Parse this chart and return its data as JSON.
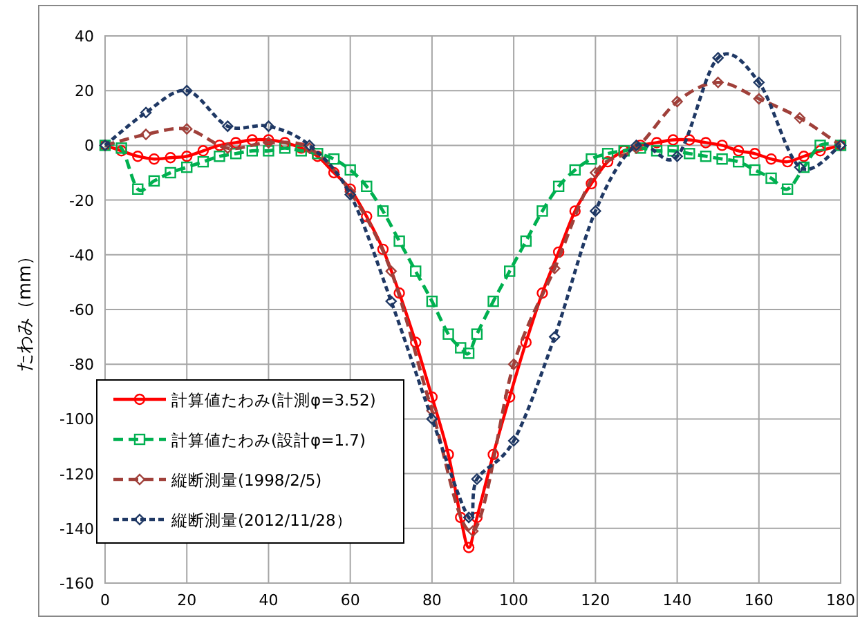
{
  "chart_data": {
    "type": "line",
    "ylabel": "たわみ（mm）",
    "xlim": [
      0,
      180
    ],
    "xticks": [
      0,
      20,
      40,
      60,
      80,
      100,
      120,
      140,
      160,
      180
    ],
    "ylim": [
      -160,
      40
    ],
    "yticks": [
      -160,
      -140,
      -120,
      -100,
      -80,
      -60,
      -40,
      -20,
      0,
      20,
      40
    ],
    "grid": true,
    "legend": "bottom left",
    "series": [
      {
        "name": "計算値たわみ(計測φ=3.52)",
        "color": "#ff0000",
        "marker": "circle",
        "line_style": "solid",
        "x": [
          0,
          4,
          8,
          12,
          16,
          20,
          24,
          28,
          32,
          36,
          40,
          44,
          48,
          52,
          56,
          60,
          64,
          68,
          72,
          76,
          80,
          84,
          87,
          89,
          91,
          95,
          99,
          103,
          107,
          111,
          115,
          119,
          123,
          127,
          131,
          135,
          139,
          143,
          147,
          151,
          155,
          159,
          163,
          167,
          171,
          175,
          180
        ],
        "values": [
          0,
          -2,
          -4,
          -5,
          -4.5,
          -4,
          -2,
          0,
          1,
          2,
          2,
          1,
          -1,
          -4,
          -10,
          -16,
          -26,
          -38,
          -54,
          -72,
          -92,
          -113,
          -136,
          -147,
          -136,
          -113,
          -92,
          -72,
          -54,
          -39,
          -24,
          -14,
          -6,
          -2,
          0,
          1,
          2,
          2,
          1,
          0,
          -2,
          -3,
          -5,
          -6,
          -4,
          -2,
          0
        ]
      },
      {
        "name": "計算値たわみ(設計φ=1.7)",
        "color": "#00b050",
        "marker": "square",
        "line_style": "dashed",
        "x": [
          0,
          4,
          8,
          12,
          16,
          20,
          24,
          28,
          32,
          36,
          40,
          44,
          48,
          52,
          56,
          60,
          64,
          68,
          72,
          76,
          80,
          84,
          87,
          89,
          91,
          95,
          99,
          103,
          107,
          111,
          115,
          119,
          123,
          127,
          131,
          135,
          139,
          143,
          147,
          151,
          155,
          159,
          163,
          167,
          171,
          175,
          180
        ],
        "values": [
          0,
          -1,
          -16,
          -13,
          -10,
          -8,
          -6,
          -4,
          -3,
          -2,
          -2,
          -1,
          -2,
          -3,
          -5,
          -9,
          -15,
          -24,
          -35,
          -46,
          -57,
          -69,
          -74,
          -76,
          -69,
          -57,
          -46,
          -35,
          -24,
          -15,
          -9,
          -5,
          -3,
          -2,
          -1,
          -2,
          -2,
          -3,
          -4,
          -5,
          -6,
          -9,
          -12,
          -16,
          -8,
          0,
          0
        ]
      },
      {
        "name": "縦断測量(1998/2/5)",
        "color": "#a0403a",
        "marker": "diamond",
        "line_style": "dashed",
        "x": [
          0,
          10,
          20,
          30,
          40,
          50,
          60,
          70,
          80,
          90,
          100,
          110,
          120,
          130,
          140,
          150,
          160,
          170,
          180
        ],
        "values": [
          0,
          4,
          6,
          -1,
          1,
          -1,
          -17,
          -46,
          -97,
          -141,
          -80,
          -45,
          -10,
          -1,
          16,
          23,
          17,
          10,
          0
        ]
      },
      {
        "name": "縦断測量(2012/11/28）",
        "color": "#1f3864",
        "marker": "diamond",
        "line_style": "dotted",
        "x": [
          0,
          10,
          20,
          30,
          40,
          50,
          60,
          70,
          80,
          89,
          91,
          100,
          110,
          120,
          130,
          140,
          150,
          160,
          170,
          180
        ],
        "values": [
          0,
          12,
          20,
          7,
          7,
          0,
          -18,
          -57,
          -100,
          -136,
          -122,
          -108,
          -70,
          -24,
          0,
          -4,
          32,
          23,
          -8,
          0
        ]
      }
    ]
  }
}
